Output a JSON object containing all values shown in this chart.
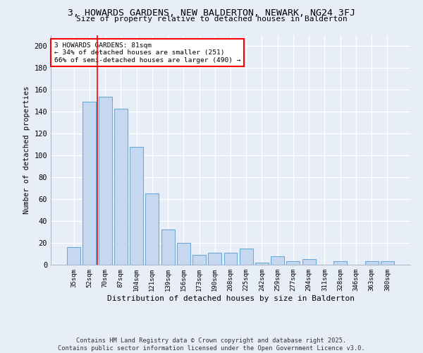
{
  "title": "3, HOWARDS GARDENS, NEW BALDERTON, NEWARK, NG24 3FJ",
  "subtitle": "Size of property relative to detached houses in Balderton",
  "xlabel": "Distribution of detached houses by size in Balderton",
  "ylabel": "Number of detached properties",
  "categories": [
    "35sqm",
    "52sqm",
    "70sqm",
    "87sqm",
    "104sqm",
    "121sqm",
    "139sqm",
    "156sqm",
    "173sqm",
    "190sqm",
    "208sqm",
    "225sqm",
    "242sqm",
    "259sqm",
    "277sqm",
    "294sqm",
    "311sqm",
    "328sqm",
    "346sqm",
    "363sqm",
    "380sqm"
  ],
  "values": [
    16,
    149,
    154,
    143,
    108,
    65,
    32,
    20,
    9,
    11,
    11,
    15,
    2,
    8,
    3,
    5,
    0,
    3,
    0,
    3,
    3
  ],
  "bar_color": "#c5d8f0",
  "bar_edge_color": "#6aaad4",
  "background_color": "#e8eef8",
  "grid_color": "#ffffff",
  "vline_color": "red",
  "vline_x_index": 2,
  "annotation_line1": "3 HOWARDS GARDENS: 81sqm",
  "annotation_line2": "← 34% of detached houses are smaller (251)",
  "annotation_line3": "66% of semi-detached houses are larger (490) →",
  "annotation_box_color": "white",
  "annotation_box_edge": "red",
  "ylim": [
    0,
    210
  ],
  "yticks": [
    0,
    20,
    40,
    60,
    80,
    100,
    120,
    140,
    160,
    180,
    200
  ],
  "footer_line1": "Contains HM Land Registry data © Crown copyright and database right 2025.",
  "footer_line2": "Contains public sector information licensed under the Open Government Licence v3.0."
}
